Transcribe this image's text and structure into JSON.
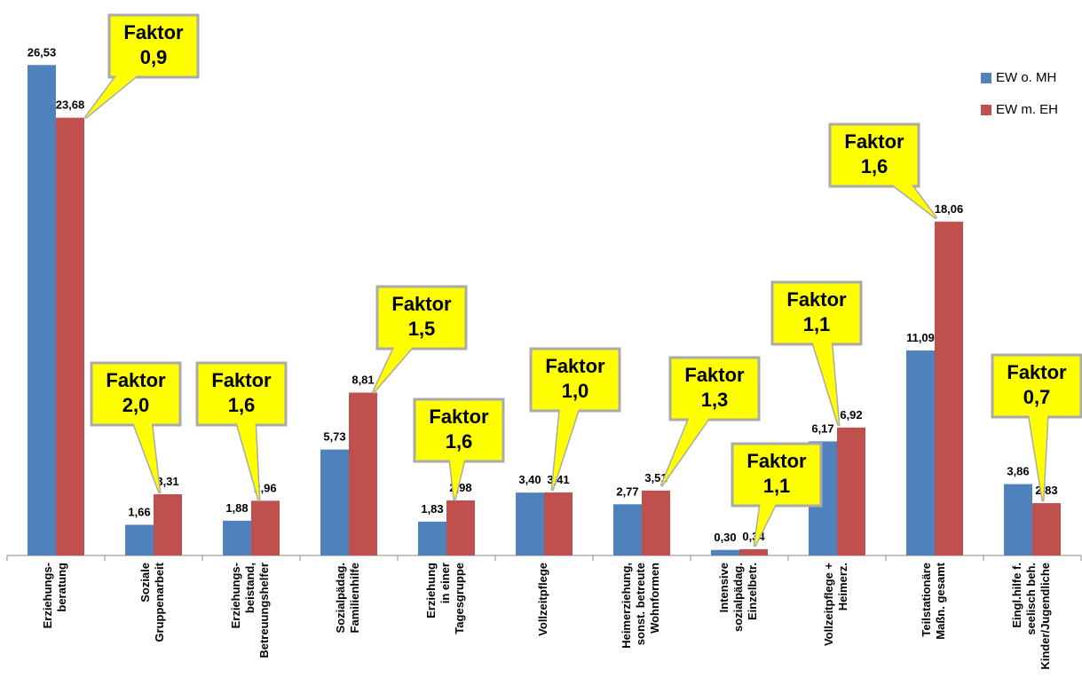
{
  "chart_data": {
    "type": "bar",
    "categories": [
      "Erziehungs-\nberatung",
      "Soziale\nGruppenarbeit",
      "Erziehungs-\nbeistand,\nBetreuungshelfer",
      "Sozialpädag.\nFamilienhilfe",
      "Erziehung\nin einer\nTagesgruppe",
      "Vollzeitpflege",
      "Heimerziehung,\nsonst. betreute\nWohnformen",
      "Intensive\nsozialpädag.\nEinzelbetr.",
      "Vollzeitpflege +\nHeimerz.",
      "Teilstationäre\nMaßn. gesamt",
      "Eingl.hilfe f.\nseelisch beh.\nKinder/Jugendliche"
    ],
    "series": [
      {
        "name": "EW o. MH",
        "color": "#4f81bd",
        "values": [
          26.53,
          1.66,
          1.88,
          5.73,
          1.83,
          3.4,
          2.77,
          0.3,
          6.17,
          11.09,
          3.86
        ],
        "value_labels": [
          "26,53",
          "1,66",
          "1,88",
          "5,73",
          "1,83",
          "3,40",
          "2,77",
          "0,30",
          "6,17",
          "11,09",
          "3,86"
        ]
      },
      {
        "name": "EW m. EH",
        "color": "#c0504d",
        "values": [
          23.68,
          3.31,
          2.96,
          8.81,
          2.98,
          3.41,
          3.51,
          0.34,
          6.92,
          18.06,
          2.83
        ],
        "value_labels": [
          "23,68",
          "3,31",
          "2,96",
          "8,81",
          "2,98",
          "3,41",
          "3,51",
          "0,34",
          "6,92",
          "18,06",
          "2,83"
        ]
      }
    ],
    "annotations": [
      "Faktor\n0,9",
      "Faktor\n2,0",
      "Faktor\n1,6",
      "Faktor\n1,5",
      "Faktor\n1,6",
      "Faktor\n1,0",
      "Faktor\n1,3",
      "Faktor\n1,1",
      "Faktor\n1,1",
      "Faktor\n1,6",
      "Faktor\n0,7"
    ],
    "ylim": [
      0,
      30
    ],
    "legend": "top-right"
  }
}
